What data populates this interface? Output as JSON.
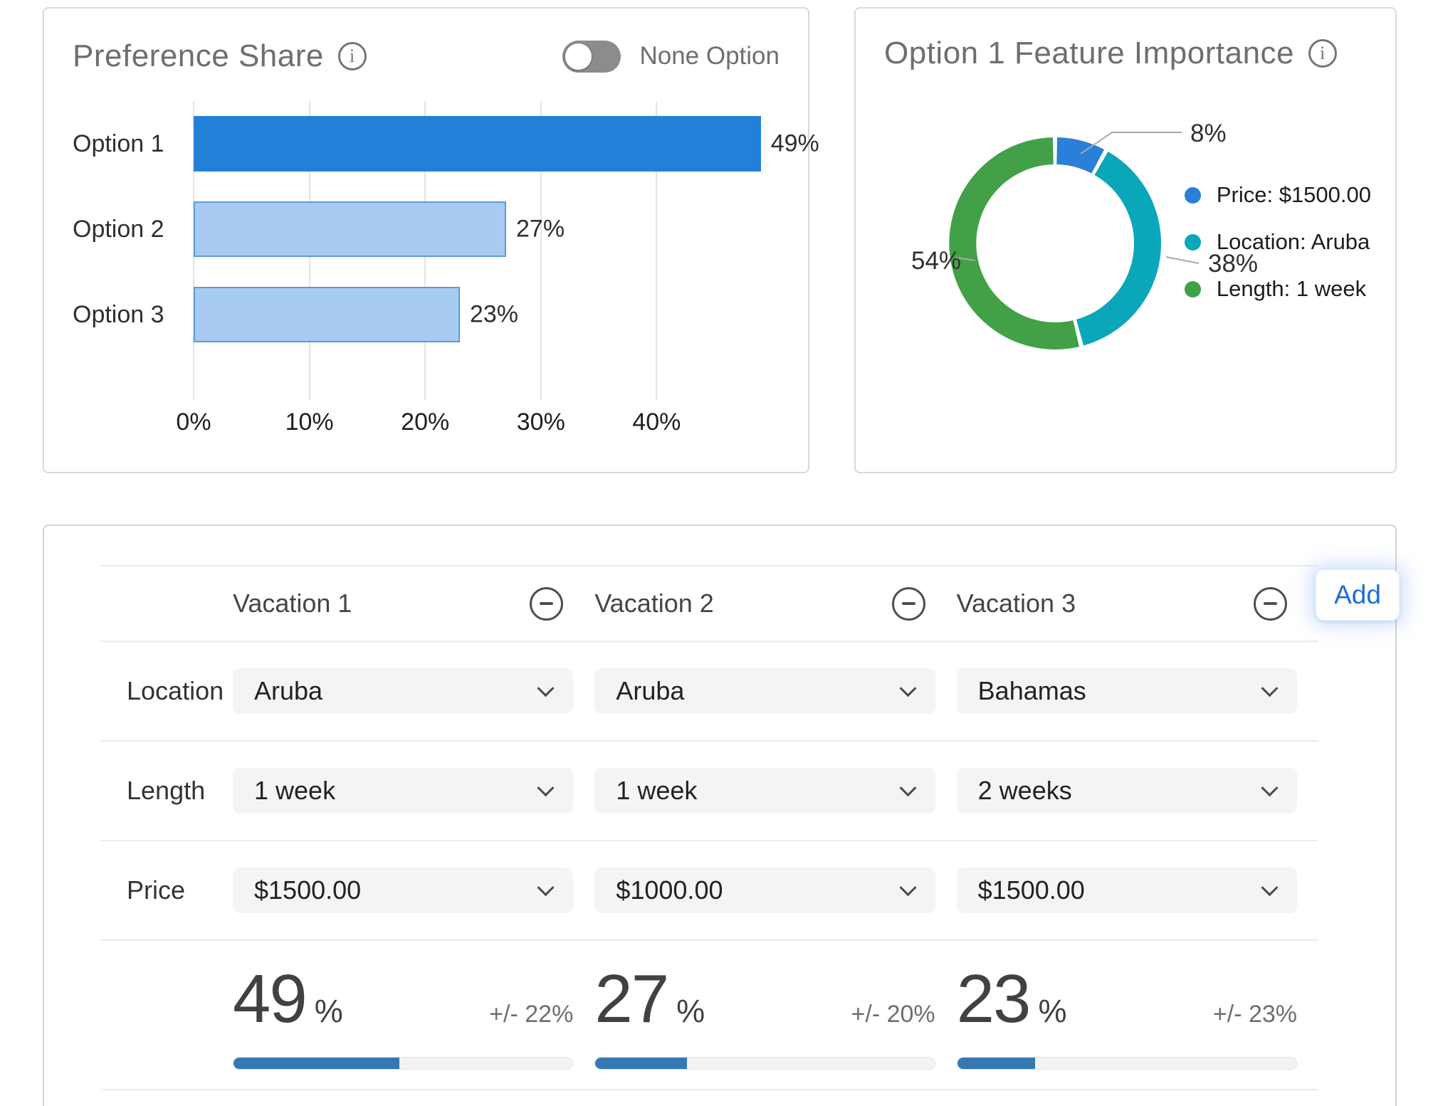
{
  "preference_share": {
    "title": "Preference Share",
    "none_option_label": "None Option",
    "toggle_state": "off",
    "chart": {
      "categories": [
        "Option 1",
        "Option 2",
        "Option 3"
      ],
      "values": [
        49,
        27,
        23
      ],
      "value_labels": [
        "49%",
        "27%",
        "23%"
      ],
      "ticks": [
        "0%",
        "10%",
        "20%",
        "30%",
        "40%"
      ],
      "axis_max": 50
    }
  },
  "feature_importance": {
    "title": "Option 1 Feature Importance",
    "chart": {
      "slices": [
        {
          "label": "Price: $1500.00",
          "value": 8,
          "pct_label": "8%",
          "color": "#2a7fd9"
        },
        {
          "label": "Location: Aruba",
          "value": 38,
          "pct_label": "38%",
          "color": "#0aa7ba"
        },
        {
          "label": "Length: 1 week",
          "value": 54,
          "pct_label": "54%",
          "color": "#42a047"
        }
      ]
    }
  },
  "simulator": {
    "row_labels": {
      "location": "Location",
      "length": "Length",
      "price": "Price"
    },
    "add_label": "Add",
    "percent_sign": "%",
    "columns": [
      {
        "name": "Vacation 1",
        "location": "Aruba",
        "length": "1 week",
        "price": "$1500.00",
        "share": 49,
        "share_display": "49",
        "margin": "+/- 22%"
      },
      {
        "name": "Vacation 2",
        "location": "Aruba",
        "length": "1 week",
        "price": "$1000.00",
        "share": 27,
        "share_display": "27",
        "margin": "+/- 20%"
      },
      {
        "name": "Vacation 3",
        "location": "Bahamas",
        "length": "2 weeks",
        "price": "$1500.00",
        "share": 23,
        "share_display": "23",
        "margin": "+/- 23%"
      }
    ]
  },
  "chart_data": [
    {
      "type": "bar",
      "orientation": "horizontal",
      "title": "Preference Share",
      "categories": [
        "Option 1",
        "Option 2",
        "Option 3"
      ],
      "values": [
        49,
        27,
        23
      ],
      "xlabel": "",
      "ylabel": "",
      "xlim": [
        0,
        50
      ],
      "xticks": [
        "0%",
        "10%",
        "20%",
        "30%",
        "40%"
      ],
      "grid": true,
      "bar_colors": [
        "#2380d9",
        "#a7cbf1",
        "#a7cbf1"
      ]
    },
    {
      "type": "pie",
      "subtype": "donut",
      "title": "Option 1 Feature Importance",
      "labels": [
        "Price: $1500.00",
        "Location: Aruba",
        "Length: 1 week"
      ],
      "values": [
        8,
        38,
        54
      ],
      "colors": [
        "#2a7fd9",
        "#0aa7ba",
        "#42a047"
      ],
      "legend_position": "right"
    }
  ]
}
